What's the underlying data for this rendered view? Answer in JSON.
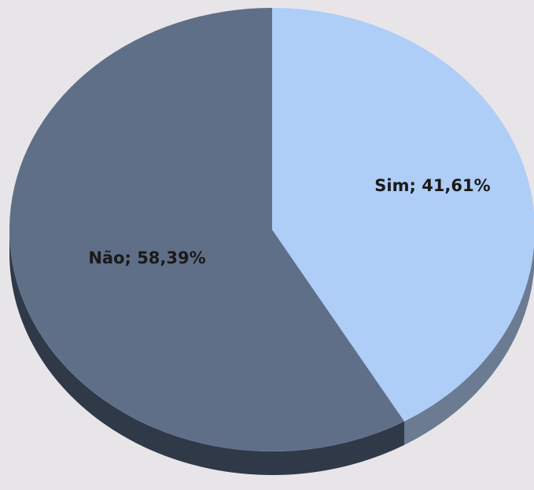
{
  "chart_data": {
    "type": "pie",
    "values": [
      41.61,
      58.39
    ],
    "value_labels": [
      "Sim; 41,61%",
      "Não; 58,39%"
    ],
    "colors": [
      "#aecdf7",
      "#5f6f88"
    ],
    "side_colors": [
      "#6a7b92",
      "#2f3947"
    ]
  }
}
